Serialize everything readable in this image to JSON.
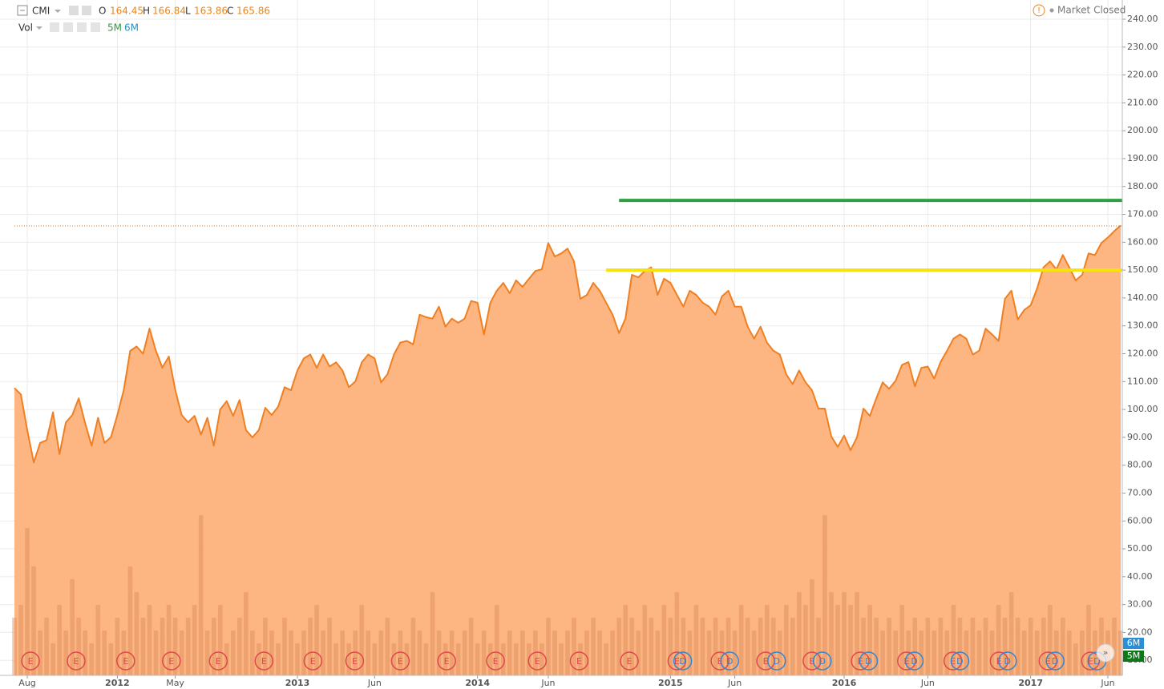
{
  "header": {
    "symbol": "CMI",
    "open_label": "O",
    "open": 164.45,
    "high_label": "H",
    "high": 166.84,
    "low_label": "L",
    "low": 163.86,
    "close_label": "C",
    "close": 165.86,
    "volume_label": "Vol",
    "volume_ma": [
      "5M",
      "6M"
    ],
    "status": "Market Closed",
    "axis_tags": [
      "6M",
      "5M"
    ]
  },
  "chart_data": {
    "type": "area",
    "color": "#f07f21",
    "fill": "#fdb27b",
    "grid": true,
    "series": [
      {
        "name": "CMI",
        "color": "#f07f21",
        "values": [
          107.7,
          105.4,
          92.6,
          81,
          88,
          89,
          99,
          84,
          95.4,
          98,
          104,
          95,
          87,
          97,
          88,
          90,
          98,
          107,
          121,
          122.6,
          120,
          129,
          121,
          115,
          119,
          107,
          98,
          95.4,
          97.7,
          91,
          97,
          87,
          100,
          103,
          97.7,
          103.4,
          92.6,
          90,
          92.6,
          100.6,
          98,
          101,
          108,
          106.9,
          114,
          118.3,
          119.7,
          114.9,
          119.7,
          115.4,
          116.9,
          114,
          108,
          110,
          116.9,
          119.7,
          118.3,
          109.7,
          112.6,
          119.7,
          124,
          124.6,
          123.4,
          134,
          133.1,
          132.6,
          136.9,
          129.7,
          132.6,
          131.1,
          132.6,
          138.9,
          138.3,
          126.9,
          138.3,
          142.6,
          145.4,
          141.7,
          146.3,
          144,
          146.9,
          149.7,
          150.3,
          159.7,
          154.9,
          156,
          157.7,
          153.1,
          139.7,
          141.1,
          145.4,
          142.6,
          138.3,
          134,
          127.4,
          132.6,
          148.3,
          147.4,
          149.7,
          151,
          141.1,
          146.9,
          145.4,
          141.1,
          136.9,
          142.6,
          141.1,
          138.3,
          136.9,
          134,
          140.6,
          142.6,
          136.9,
          136.9,
          129.7,
          125.4,
          129.7,
          124,
          121.1,
          119.7,
          112.6,
          109.1,
          114,
          109.7,
          106.9,
          100.3,
          100.3,
          90.3,
          86.6,
          90.6,
          85.4,
          90,
          100.3,
          97.7,
          104,
          109.7,
          107.4,
          110.3,
          116,
          117,
          108.3,
          114.9,
          115.4,
          111.1,
          117,
          121.1,
          125.4,
          126.9,
          125.4,
          119.7,
          121.1,
          129,
          126.9,
          124.6,
          139.7,
          142.6,
          132.3,
          135.7,
          137.4,
          143.4,
          151,
          153.1,
          150.3,
          155.4,
          151,
          146.3,
          148.3,
          156,
          155.4,
          159.7,
          161.7,
          164,
          166
        ]
      },
      {
        "name": "Vol",
        "axis": "y2",
        "color": "#d9895a",
        "values": [
          8,
          9,
          15,
          12,
          7,
          8,
          6,
          9,
          7,
          11,
          8,
          7,
          6,
          9,
          7,
          6,
          8,
          7,
          12,
          10,
          8,
          9,
          7,
          8,
          9,
          8,
          7,
          8,
          9,
          16,
          7,
          8,
          9,
          6,
          7,
          8,
          10,
          7,
          6,
          8,
          7,
          6,
          8,
          7,
          6,
          7,
          8,
          9,
          7,
          8,
          6,
          7,
          6,
          7,
          9,
          7,
          6,
          7,
          8,
          6,
          7,
          6,
          8,
          7,
          6,
          10,
          7,
          6,
          7,
          6,
          7,
          8,
          6,
          7,
          6,
          9,
          6,
          7,
          6,
          7,
          6,
          7,
          6,
          8,
          7,
          6,
          7,
          8,
          6,
          7,
          8,
          7,
          6,
          7,
          8,
          9,
          8,
          7,
          9,
          8,
          7,
          9,
          8,
          10,
          8,
          7,
          9,
          8,
          7,
          8,
          7,
          8,
          7,
          9,
          8,
          7,
          8,
          9,
          8,
          7,
          9,
          8,
          10,
          9,
          11,
          8,
          16,
          10,
          9,
          10,
          9,
          10,
          8,
          9,
          8,
          7,
          8,
          7,
          9,
          7,
          8,
          7,
          8,
          7,
          8,
          7,
          9,
          8,
          7,
          8,
          7,
          8,
          7,
          9,
          8,
          10,
          8,
          7,
          8,
          7,
          8,
          9,
          7,
          8,
          7,
          6,
          7,
          9,
          7,
          8,
          7,
          8,
          7
        ]
      }
    ],
    "xlim": [
      0,
      172
    ],
    "xticks": [
      {
        "value": 2,
        "label": "Aug"
      },
      {
        "value": 16,
        "label": "2012"
      },
      {
        "value": 25,
        "label": "May"
      },
      {
        "value": 44,
        "label": "2013"
      },
      {
        "value": 56,
        "label": "Jun"
      },
      {
        "value": 72,
        "label": "2014"
      },
      {
        "value": 83,
        "label": "Jun"
      },
      {
        "value": 102,
        "label": "2015"
      },
      {
        "value": 112,
        "label": "Jun"
      },
      {
        "value": 129,
        "label": "2016"
      },
      {
        "value": 142,
        "label": "Jun"
      },
      {
        "value": 158,
        "label": "2017"
      },
      {
        "value": 170,
        "label": "Jun"
      }
    ],
    "ylim": [
      4.6,
      246.9
    ],
    "yticks": [
      {
        "value": 10,
        "label": "10.00"
      },
      {
        "value": 20,
        "label": "20.00"
      },
      {
        "value": 30,
        "label": "30.00"
      },
      {
        "value": 40,
        "label": "40.00"
      },
      {
        "value": 50,
        "label": "50.00"
      },
      {
        "value": 60,
        "label": "60.00"
      },
      {
        "value": 70,
        "label": "70.00"
      },
      {
        "value": 80,
        "label": "80.00"
      },
      {
        "value": 90,
        "label": "90.00"
      },
      {
        "value": 100,
        "label": "100.00"
      },
      {
        "value": 110,
        "label": "110.00"
      },
      {
        "value": 120,
        "label": "120.00"
      },
      {
        "value": 130,
        "label": "130.00"
      },
      {
        "value": 140,
        "label": "140.00"
      },
      {
        "value": 150,
        "label": "150.00"
      },
      {
        "value": 160,
        "label": "160.00"
      },
      {
        "value": 170,
        "label": "170.00"
      },
      {
        "value": 180,
        "label": "180.00"
      },
      {
        "value": 190,
        "label": "190.00"
      },
      {
        "value": 200,
        "label": "200.00"
      },
      {
        "value": 210,
        "label": "210.00"
      },
      {
        "value": 220,
        "label": "220.00"
      },
      {
        "value": 230,
        "label": "230.00"
      },
      {
        "value": 240,
        "label": "240.00"
      }
    ],
    "y2lim": [
      3.5,
      56.2
    ],
    "hlines": [
      {
        "y": 175,
        "x_start": 94,
        "color": "#2ea043"
      },
      {
        "y": 150,
        "x_start": 92,
        "color": "#f5e20f"
      }
    ],
    "events": [
      {
        "x": 2.5,
        "label": "E",
        "color": "#e0474c"
      },
      {
        "x": 9.6,
        "label": "E",
        "color": "#e0474c"
      },
      {
        "x": 17.3,
        "label": "E",
        "color": "#e0474c"
      },
      {
        "x": 24.4,
        "label": "E",
        "color": "#e0474c"
      },
      {
        "x": 31.7,
        "label": "E",
        "color": "#e0474c"
      },
      {
        "x": 38.8,
        "label": "E",
        "color": "#e0474c"
      },
      {
        "x": 46.4,
        "label": "E",
        "color": "#e0474c"
      },
      {
        "x": 52.9,
        "label": "E",
        "color": "#e0474c"
      },
      {
        "x": 60,
        "label": "E",
        "color": "#e0474c"
      },
      {
        "x": 67.2,
        "label": "E",
        "color": "#e0474c"
      },
      {
        "x": 74.8,
        "label": "E",
        "color": "#e0474c"
      },
      {
        "x": 81.3,
        "label": "E",
        "color": "#e0474c"
      },
      {
        "x": 87.8,
        "label": "E",
        "color": "#e0474c"
      },
      {
        "x": 95.6,
        "label": "E",
        "color": "#e0474c"
      },
      {
        "x": 103,
        "label": "E",
        "color": "#e0474c"
      },
      {
        "x": 109.7,
        "label": "E",
        "color": "#e0474c"
      },
      {
        "x": 116.8,
        "label": "E",
        "color": "#e0474c"
      },
      {
        "x": 124,
        "label": "E",
        "color": "#e0474c"
      },
      {
        "x": 131.5,
        "label": "E",
        "color": "#e0474c"
      },
      {
        "x": 138.7,
        "label": "E",
        "color": "#e0474c"
      },
      {
        "x": 145.9,
        "label": "E",
        "color": "#e0474c"
      },
      {
        "x": 153.1,
        "label": "E",
        "color": "#e0474c"
      },
      {
        "x": 160.7,
        "label": "E",
        "color": "#e0474c"
      },
      {
        "x": 167.3,
        "label": "E",
        "color": "#e0474c"
      },
      {
        "x": 103.9,
        "label": "D",
        "color": "#2f86d6"
      },
      {
        "x": 111.2,
        "label": "D",
        "color": "#2f86d6"
      },
      {
        "x": 118.5,
        "label": "D",
        "color": "#2f86d6"
      },
      {
        "x": 125.6,
        "label": "D",
        "color": "#2f86d6"
      },
      {
        "x": 132.8,
        "label": "D",
        "color": "#2f86d6"
      },
      {
        "x": 139.9,
        "label": "D",
        "color": "#2f86d6"
      },
      {
        "x": 147,
        "label": "D",
        "color": "#2f86d6"
      },
      {
        "x": 154.4,
        "label": "D",
        "color": "#2f86d6"
      },
      {
        "x": 161.8,
        "label": "D",
        "color": "#2f86d6"
      },
      {
        "x": 168.3,
        "label": "D",
        "color": "#2f86d6"
      }
    ]
  }
}
